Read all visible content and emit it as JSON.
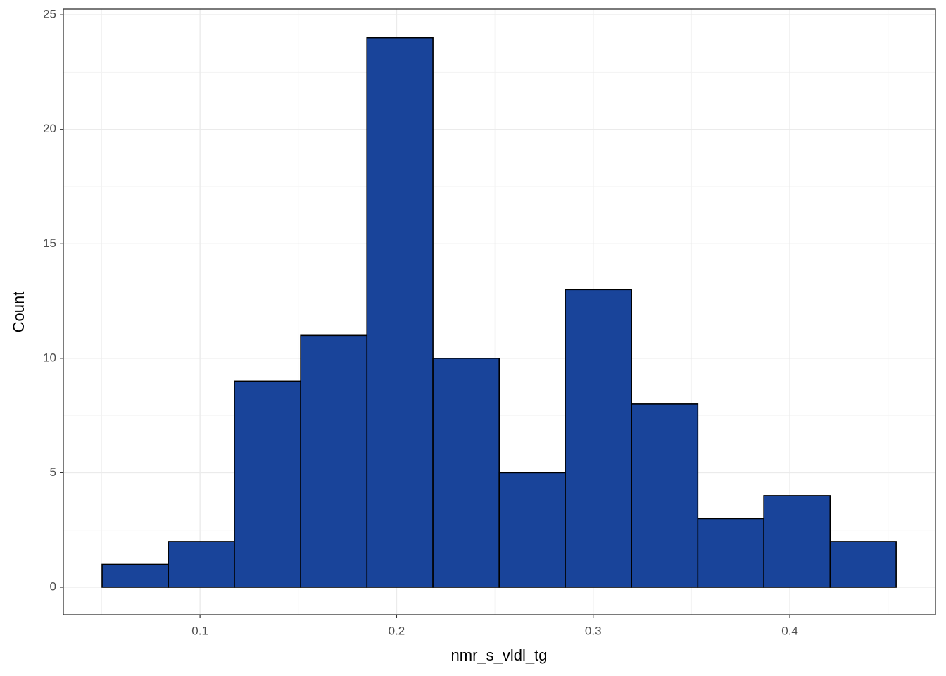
{
  "chart_data": {
    "type": "histogram",
    "x_label": "nmr_s_vldl_tg",
    "y_label": "Count",
    "bins": [
      0.0502,
      0.0839,
      0.1175,
      0.1512,
      0.1849,
      0.2185,
      0.2522,
      0.2858,
      0.3195,
      0.3532,
      0.3868,
      0.4205,
      0.4541
    ],
    "values": [
      1,
      2,
      9,
      11,
      24,
      10,
      5,
      13,
      8,
      3,
      4,
      2
    ],
    "color": "#19449a",
    "edge_color": "#000000",
    "xlim": [
      0.0305,
      0.4741
    ],
    "xticks": [
      0.1,
      0.2,
      0.3,
      0.4
    ],
    "ylim": [
      -1.2,
      25.25
    ],
    "yticks": [
      0,
      5,
      10,
      15,
      20,
      25
    ],
    "grid": true
  }
}
